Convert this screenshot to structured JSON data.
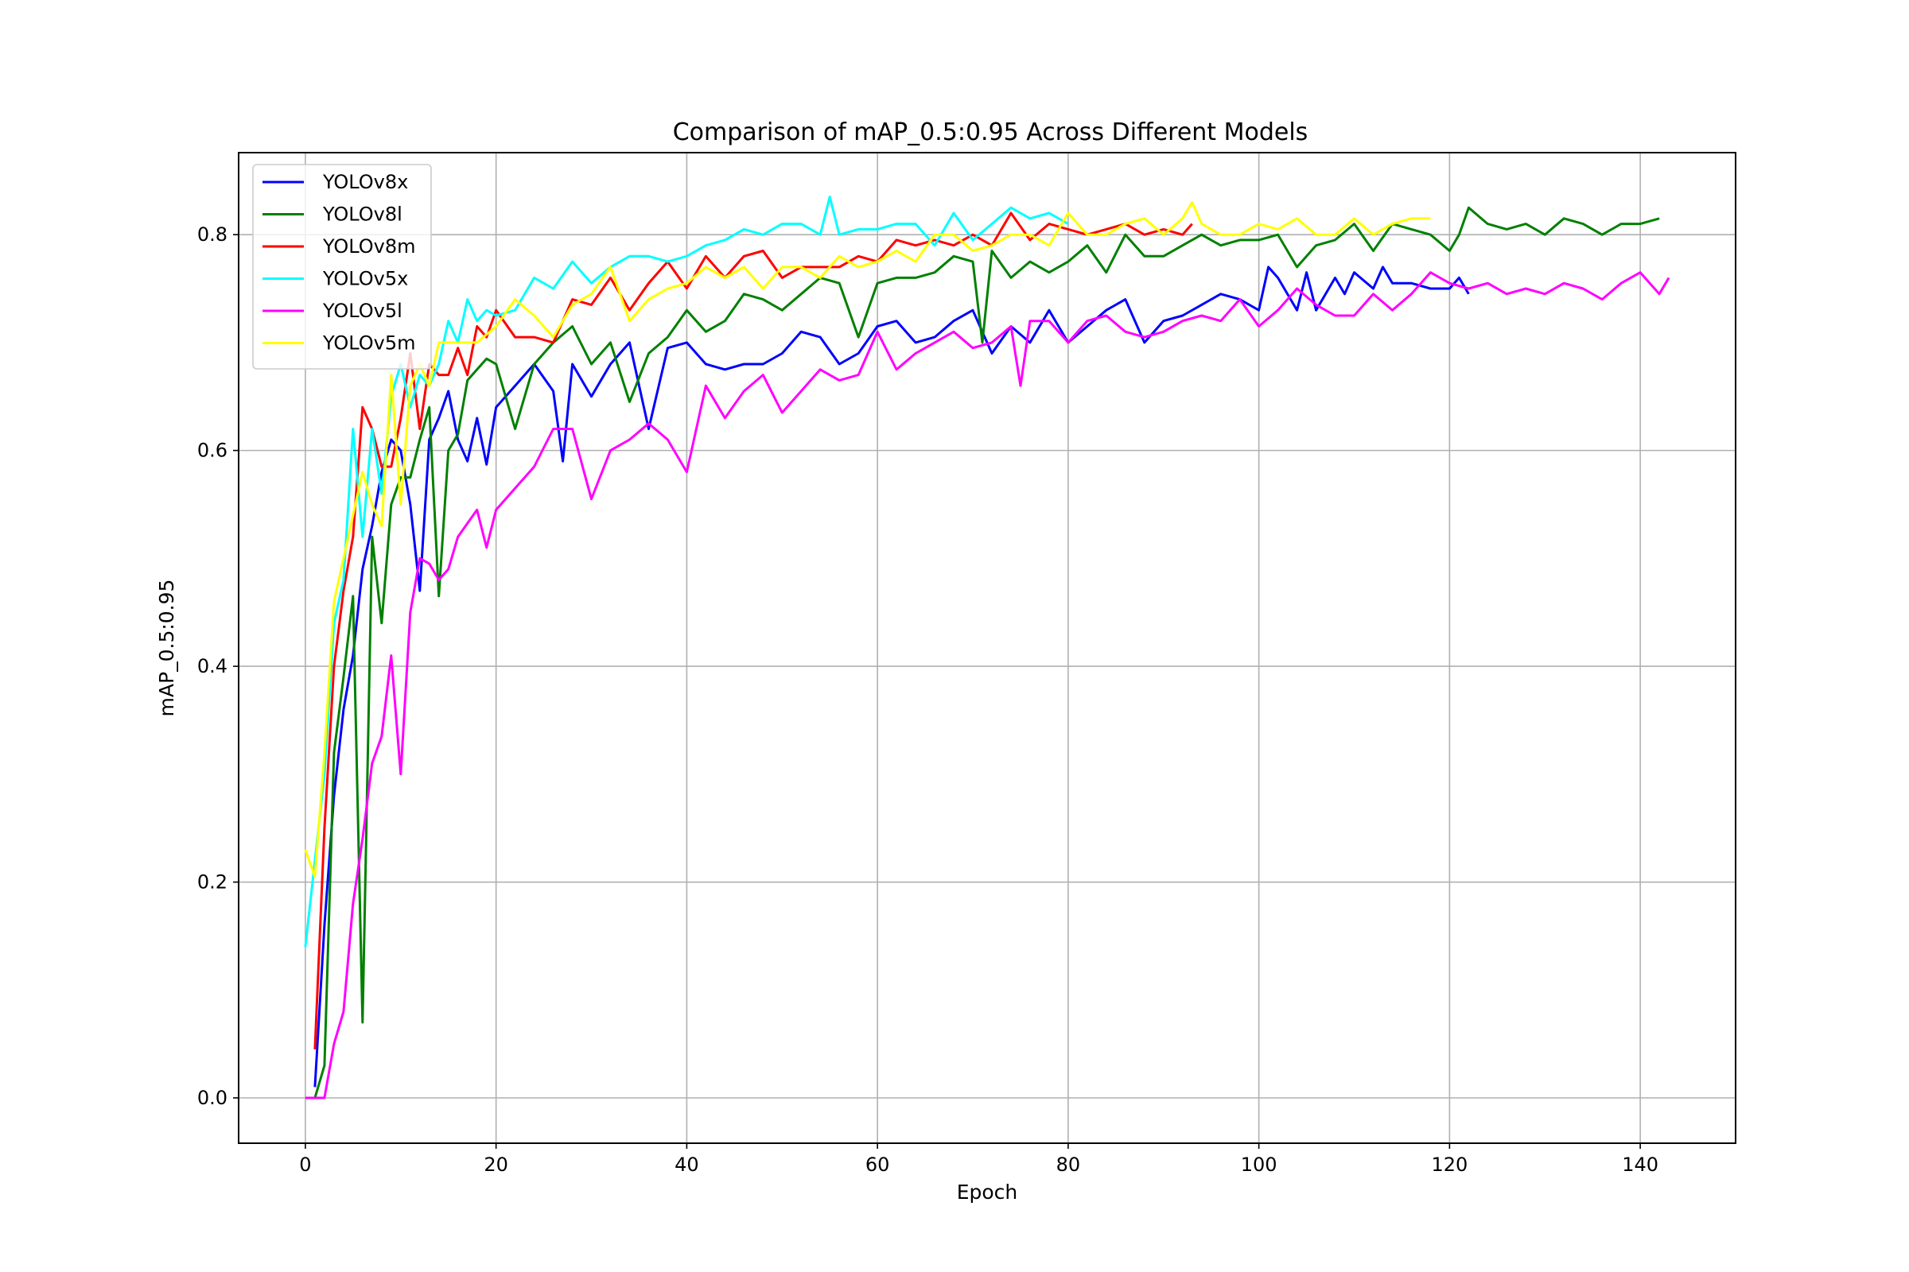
{
  "chart_data": {
    "type": "line",
    "title": "Comparison of mAP_0.5:0.95 Across Different Models",
    "xlabel": "Epoch",
    "ylabel": "mAP_0.5:0.95",
    "xlim": [
      -7,
      150
    ],
    "ylim": [
      -0.042,
      0.876
    ],
    "xticks": [
      0,
      20,
      40,
      60,
      80,
      100,
      120,
      140
    ],
    "yticks": [
      0.0,
      0.2,
      0.4,
      0.6,
      0.8
    ],
    "grid": true,
    "legend_position": "top-left",
    "series": [
      {
        "name": "YOLOv8x",
        "color": "#0000ff",
        "x": [
          1,
          2,
          3,
          4,
          5,
          6,
          7,
          8,
          9,
          10,
          11,
          12,
          13,
          14,
          15,
          16,
          17,
          18,
          19,
          20,
          22,
          24,
          26,
          27,
          28,
          30,
          32,
          34,
          36,
          38,
          40,
          42,
          44,
          46,
          48,
          50,
          52,
          54,
          56,
          58,
          60,
          62,
          64,
          66,
          68,
          70,
          72,
          74,
          76,
          78,
          80,
          82,
          84,
          86,
          88,
          90,
          92,
          94,
          96,
          98,
          100,
          101,
          102,
          104,
          105,
          106,
          108,
          109,
          110,
          112,
          113,
          114,
          116,
          118,
          120,
          121,
          122
        ],
        "y": [
          0.01,
          0.16,
          0.28,
          0.36,
          0.41,
          0.49,
          0.53,
          0.58,
          0.61,
          0.6,
          0.55,
          0.47,
          0.61,
          0.63,
          0.655,
          0.61,
          0.59,
          0.63,
          0.587,
          0.64,
          0.66,
          0.68,
          0.655,
          0.59,
          0.68,
          0.65,
          0.68,
          0.7,
          0.62,
          0.695,
          0.7,
          0.68,
          0.675,
          0.68,
          0.68,
          0.69,
          0.71,
          0.705,
          0.68,
          0.69,
          0.715,
          0.72,
          0.7,
          0.705,
          0.72,
          0.73,
          0.69,
          0.715,
          0.7,
          0.73,
          0.7,
          0.715,
          0.73,
          0.74,
          0.7,
          0.72,
          0.725,
          0.735,
          0.745,
          0.74,
          0.73,
          0.77,
          0.76,
          0.73,
          0.765,
          0.73,
          0.76,
          0.745,
          0.765,
          0.75,
          0.77,
          0.755,
          0.755,
          0.75,
          0.75,
          0.76,
          0.745
        ]
      },
      {
        "name": "YOLOv8l",
        "color": "#008000",
        "x": [
          1,
          2,
          3,
          4,
          5,
          6,
          7,
          8,
          9,
          10,
          11,
          12,
          13,
          14,
          15,
          16,
          17,
          18,
          19,
          20,
          22,
          24,
          26,
          28,
          30,
          32,
          34,
          36,
          38,
          40,
          42,
          44,
          46,
          48,
          50,
          52,
          54,
          56,
          58,
          60,
          62,
          64,
          66,
          68,
          70,
          71,
          72,
          74,
          76,
          78,
          80,
          82,
          84,
          86,
          88,
          90,
          92,
          94,
          96,
          98,
          100,
          102,
          104,
          106,
          108,
          110,
          112,
          114,
          116,
          118,
          120,
          121,
          122,
          124,
          126,
          128,
          130,
          132,
          134,
          136,
          138,
          140,
          142
        ],
        "y": [
          0.0,
          0.03,
          0.32,
          0.39,
          0.465,
          0.07,
          0.52,
          0.44,
          0.55,
          0.575,
          0.575,
          0.61,
          0.64,
          0.465,
          0.6,
          0.615,
          0.665,
          0.675,
          0.685,
          0.68,
          0.62,
          0.68,
          0.7,
          0.715,
          0.68,
          0.7,
          0.645,
          0.69,
          0.705,
          0.73,
          0.71,
          0.72,
          0.745,
          0.74,
          0.73,
          0.745,
          0.76,
          0.755,
          0.705,
          0.755,
          0.76,
          0.76,
          0.765,
          0.78,
          0.775,
          0.7,
          0.785,
          0.76,
          0.775,
          0.765,
          0.775,
          0.79,
          0.765,
          0.8,
          0.78,
          0.78,
          0.79,
          0.8,
          0.79,
          0.795,
          0.795,
          0.8,
          0.77,
          0.79,
          0.795,
          0.81,
          0.785,
          0.81,
          0.805,
          0.8,
          0.785,
          0.8,
          0.825,
          0.81,
          0.805,
          0.81,
          0.8,
          0.815,
          0.81,
          0.8,
          0.81,
          0.81,
          0.815
        ]
      },
      {
        "name": "YOLOv8m",
        "color": "#ff0000",
        "x": [
          1,
          2,
          3,
          4,
          5,
          6,
          7,
          8,
          9,
          10,
          11,
          12,
          13,
          14,
          15,
          16,
          17,
          18,
          19,
          20,
          22,
          24,
          26,
          28,
          30,
          32,
          34,
          36,
          38,
          40,
          42,
          44,
          46,
          48,
          50,
          52,
          54,
          56,
          58,
          60,
          62,
          64,
          66,
          68,
          70,
          72,
          74,
          76,
          78,
          80,
          82,
          84,
          86,
          88,
          90,
          92,
          93
        ],
        "y": [
          0.045,
          0.25,
          0.4,
          0.47,
          0.52,
          0.64,
          0.62,
          0.585,
          0.585,
          0.63,
          0.69,
          0.62,
          0.68,
          0.67,
          0.67,
          0.695,
          0.67,
          0.715,
          0.705,
          0.73,
          0.705,
          0.705,
          0.7,
          0.74,
          0.735,
          0.76,
          0.73,
          0.755,
          0.775,
          0.75,
          0.78,
          0.76,
          0.78,
          0.785,
          0.76,
          0.77,
          0.77,
          0.77,
          0.78,
          0.775,
          0.795,
          0.79,
          0.795,
          0.79,
          0.8,
          0.79,
          0.82,
          0.795,
          0.81,
          0.805,
          0.8,
          0.805,
          0.81,
          0.8,
          0.805,
          0.8,
          0.81
        ]
      },
      {
        "name": "YOLOv5x",
        "color": "#00ffff",
        "x": [
          0,
          1,
          2,
          3,
          4,
          5,
          6,
          7,
          8,
          9,
          10,
          11,
          12,
          13,
          14,
          15,
          16,
          17,
          18,
          19,
          20,
          22,
          24,
          26,
          28,
          30,
          32,
          34,
          36,
          38,
          40,
          42,
          44,
          46,
          48,
          50,
          52,
          54,
          55,
          56,
          58,
          60,
          62,
          64,
          66,
          68,
          70,
          72,
          74,
          76,
          78,
          80
        ],
        "y": [
          0.14,
          0.22,
          0.3,
          0.44,
          0.48,
          0.62,
          0.52,
          0.62,
          0.56,
          0.65,
          0.68,
          0.64,
          0.67,
          0.66,
          0.68,
          0.72,
          0.7,
          0.74,
          0.72,
          0.73,
          0.725,
          0.73,
          0.76,
          0.75,
          0.775,
          0.755,
          0.77,
          0.78,
          0.78,
          0.775,
          0.78,
          0.79,
          0.795,
          0.805,
          0.8,
          0.81,
          0.81,
          0.8,
          0.835,
          0.8,
          0.805,
          0.805,
          0.81,
          0.81,
          0.79,
          0.82,
          0.795,
          0.81,
          0.825,
          0.815,
          0.82,
          0.81
        ]
      },
      {
        "name": "YOLOv5l",
        "color": "#ff00ff",
        "x": [
          0,
          1,
          2,
          3,
          4,
          5,
          6,
          7,
          8,
          9,
          10,
          11,
          12,
          13,
          14,
          15,
          16,
          18,
          19,
          20,
          22,
          24,
          26,
          28,
          30,
          32,
          34,
          36,
          38,
          40,
          42,
          44,
          46,
          48,
          50,
          52,
          54,
          56,
          58,
          60,
          62,
          64,
          66,
          68,
          70,
          72,
          74,
          75,
          76,
          78,
          80,
          82,
          84,
          86,
          88,
          90,
          92,
          94,
          96,
          98,
          100,
          102,
          104,
          106,
          108,
          110,
          112,
          114,
          116,
          118,
          120,
          122,
          124,
          126,
          128,
          130,
          132,
          134,
          136,
          138,
          140,
          142,
          143
        ],
        "y": [
          0.0,
          0.0,
          0.0,
          0.05,
          0.08,
          0.18,
          0.24,
          0.31,
          0.335,
          0.41,
          0.3,
          0.45,
          0.5,
          0.495,
          0.48,
          0.49,
          0.52,
          0.545,
          0.51,
          0.545,
          0.565,
          0.585,
          0.62,
          0.62,
          0.555,
          0.6,
          0.61,
          0.625,
          0.61,
          0.58,
          0.66,
          0.63,
          0.655,
          0.67,
          0.635,
          0.655,
          0.675,
          0.665,
          0.67,
          0.71,
          0.675,
          0.69,
          0.7,
          0.71,
          0.695,
          0.7,
          0.715,
          0.66,
          0.72,
          0.72,
          0.7,
          0.72,
          0.725,
          0.71,
          0.705,
          0.71,
          0.72,
          0.725,
          0.72,
          0.74,
          0.715,
          0.73,
          0.75,
          0.735,
          0.725,
          0.725,
          0.745,
          0.73,
          0.745,
          0.765,
          0.755,
          0.75,
          0.755,
          0.745,
          0.75,
          0.745,
          0.755,
          0.75,
          0.74,
          0.755,
          0.765,
          0.745,
          0.76
        ]
      },
      {
        "name": "YOLOv5m",
        "color": "#ffff00",
        "x": [
          0,
          1,
          2,
          3,
          4,
          5,
          6,
          7,
          8,
          9,
          10,
          11,
          12,
          13,
          14,
          15,
          16,
          18,
          20,
          22,
          24,
          26,
          28,
          30,
          32,
          34,
          36,
          38,
          40,
          42,
          44,
          46,
          48,
          50,
          52,
          54,
          56,
          58,
          60,
          62,
          64,
          66,
          68,
          70,
          72,
          74,
          76,
          78,
          80,
          82,
          84,
          86,
          88,
          90,
          92,
          93,
          94,
          96,
          98,
          100,
          102,
          104,
          106,
          108,
          110,
          112,
          114,
          116,
          118
        ],
        "y": [
          0.23,
          0.205,
          0.32,
          0.46,
          0.5,
          0.54,
          0.58,
          0.55,
          0.53,
          0.67,
          0.55,
          0.66,
          0.68,
          0.66,
          0.7,
          0.7,
          0.7,
          0.7,
          0.715,
          0.74,
          0.725,
          0.705,
          0.735,
          0.745,
          0.77,
          0.72,
          0.74,
          0.75,
          0.755,
          0.77,
          0.76,
          0.77,
          0.75,
          0.77,
          0.77,
          0.76,
          0.78,
          0.77,
          0.775,
          0.785,
          0.775,
          0.8,
          0.8,
          0.785,
          0.79,
          0.8,
          0.8,
          0.79,
          0.82,
          0.8,
          0.8,
          0.81,
          0.815,
          0.8,
          0.815,
          0.83,
          0.81,
          0.8,
          0.8,
          0.81,
          0.805,
          0.815,
          0.8,
          0.8,
          0.815,
          0.8,
          0.81,
          0.815,
          0.815
        ]
      }
    ]
  }
}
